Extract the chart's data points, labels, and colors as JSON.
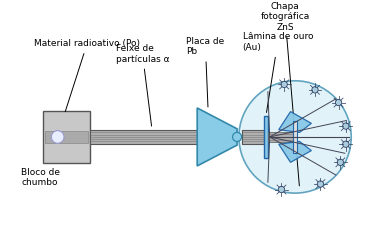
{
  "background_color": "#ffffff",
  "labels": {
    "material_radioativo": "Material radioativo (Po)",
    "bloco_chumbo": "Bloco de\nchumbo",
    "feixe": "Feixe de\npartículas α",
    "placa": "Placa de\nPb",
    "lamina": "Lâmina de ouro\n(Au)",
    "chapa": "Chapa\nfotográfica\nZnS"
  },
  "colors": {
    "lead_block": "#c8c8c8",
    "lead_block_edge": "#555555",
    "beam_tube": "#b0b0b0",
    "beam_tube_edge": "#555555",
    "cone_fill": "#88cce8",
    "cone_edge": "#3388aa",
    "circle_fill": "#d8eef8",
    "circle_edge": "#3388aa",
    "foil_fill": "#88c8e8",
    "foil_edge": "#2266aa",
    "text_color": "#000000",
    "scatter_lines": "#444455",
    "spark_fill": "#aaccdd",
    "spark_edge": "#334466",
    "stripe": "#666666"
  }
}
